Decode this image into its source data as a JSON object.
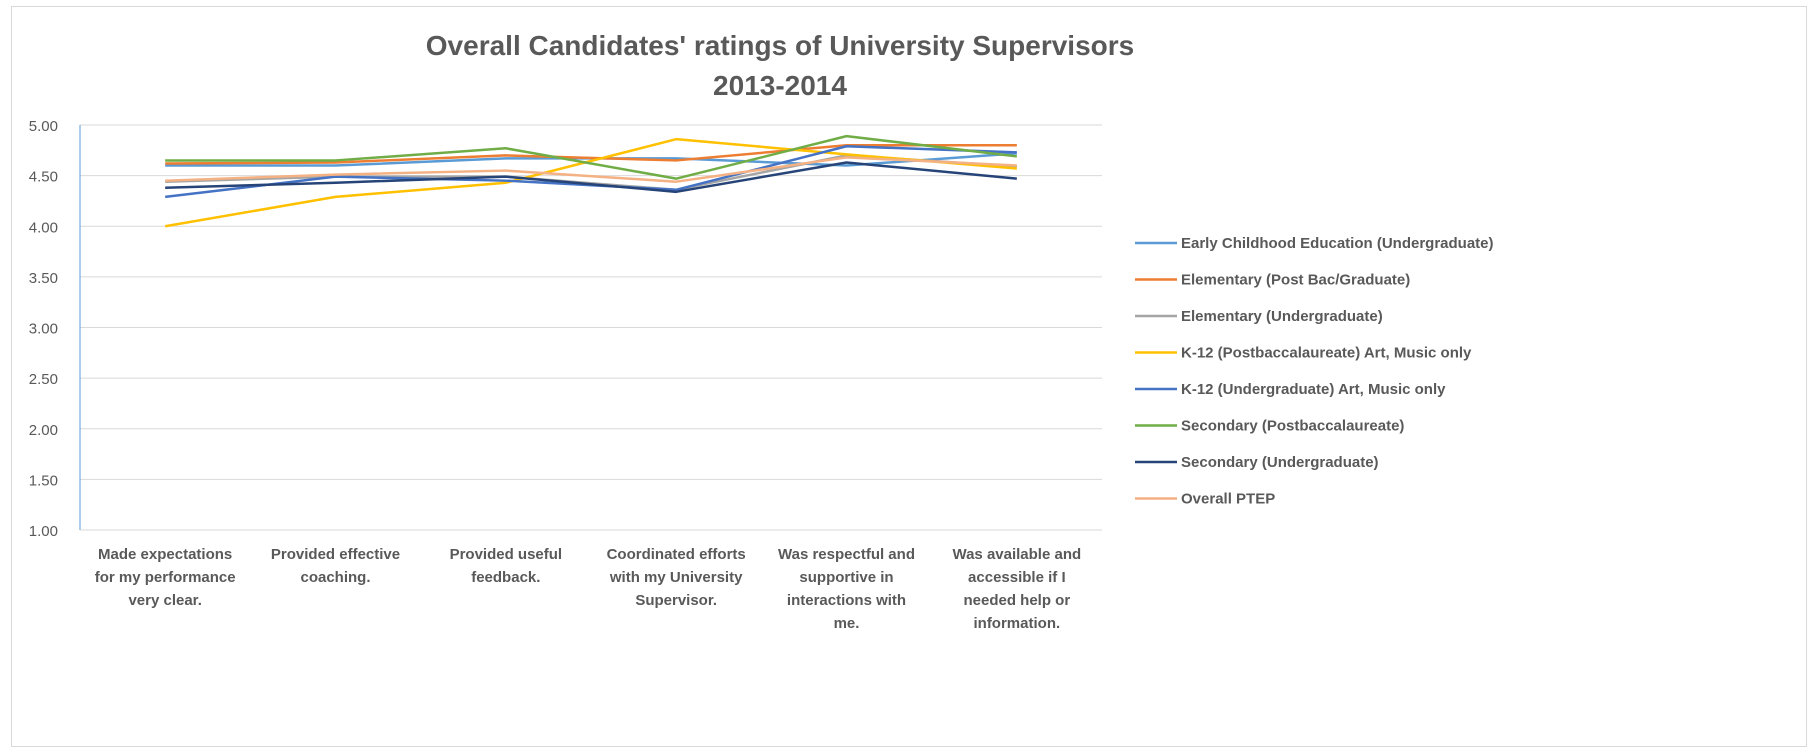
{
  "chart_data": {
    "type": "line",
    "title": "Overall Candidates' ratings of University Supervisors",
    "subtitle": "2013-2014",
    "xlabel": "",
    "ylabel": "",
    "ylim": [
      1.0,
      5.0
    ],
    "yticks": [
      "1.00",
      "1.50",
      "2.00",
      "2.50",
      "3.00",
      "3.50",
      "4.00",
      "4.50",
      "5.00"
    ],
    "grid": true,
    "legend_position": "right",
    "categories": [
      [
        "Made expectations",
        "for my performance",
        "very clear."
      ],
      [
        "Provided effective",
        "coaching."
      ],
      [
        "Provided useful",
        "feedback."
      ],
      [
        "Coordinated efforts",
        "with my University",
        "Supervisor."
      ],
      [
        "Was respectful and",
        "supportive in",
        "interactions with",
        "me."
      ],
      [
        "Was available and",
        "accessible if I",
        "needed help or",
        "information."
      ]
    ],
    "series": [
      {
        "name": "Early Childhood Education (Undergraduate)",
        "color": "#5b9bd5",
        "values": [
          4.6,
          4.6,
          4.67,
          4.67,
          4.6,
          4.72
        ]
      },
      {
        "name": "Elementary (Post Bac/Graduate)",
        "color": "#ed7d31",
        "values": [
          4.62,
          4.63,
          4.7,
          4.65,
          4.8,
          4.8
        ]
      },
      {
        "name": "Elementary (Undergraduate)",
        "color": "#a5a5a5",
        "values": [
          4.44,
          4.49,
          4.49,
          4.36,
          4.7,
          4.59
        ]
      },
      {
        "name": "K-12 (Postbaccalaureate) Art, Music only",
        "color": "#ffc000",
        "values": [
          4.0,
          4.29,
          4.43,
          4.86,
          4.71,
          4.57
        ]
      },
      {
        "name": "K-12 (Undergraduate) Art, Music only",
        "color": "#4472c4",
        "values": [
          4.29,
          4.49,
          4.45,
          4.36,
          4.79,
          4.73
        ]
      },
      {
        "name": "Secondary (Postbaccalaureate)",
        "color": "#70ad47",
        "values": [
          4.65,
          4.65,
          4.77,
          4.47,
          4.89,
          4.69
        ]
      },
      {
        "name": "Secondary (Undergraduate)",
        "color": "#264478",
        "values": [
          4.38,
          4.43,
          4.49,
          4.34,
          4.63,
          4.47
        ]
      },
      {
        "name": "Overall PTEP",
        "color": "#f4b183",
        "values": [
          4.45,
          4.51,
          4.55,
          4.44,
          4.68,
          4.6
        ]
      }
    ]
  }
}
